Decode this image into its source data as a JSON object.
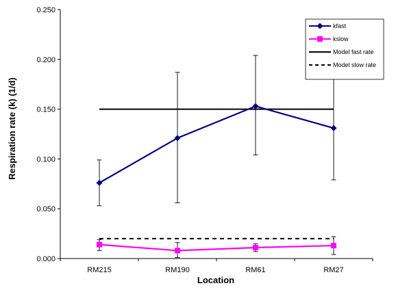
{
  "chart_data": {
    "type": "line",
    "xlabel": "Location",
    "ylabel": "Respiration rate (k) (1/d)",
    "categories": [
      "RM215",
      "RM190",
      "RM61",
      "RM27"
    ],
    "ylim": [
      0,
      0.25
    ],
    "yticks": [
      "0.000",
      "0.050",
      "0.100",
      "0.150",
      "0.200",
      "0.250"
    ],
    "grid": false,
    "legend_position": "top-right",
    "series": [
      {
        "name": "kfast",
        "color": "#000080",
        "marker": "diamond",
        "values": [
          0.076,
          0.121,
          0.153,
          0.131
        ],
        "err_low": [
          0.053,
          0.056,
          0.104,
          0.079
        ],
        "err_high": [
          0.099,
          0.187,
          0.204,
          0.183
        ]
      },
      {
        "name": "kslow",
        "color": "#FF00FF",
        "marker": "square",
        "values": [
          0.014,
          0.008,
          0.011,
          0.013
        ],
        "err_low": [
          0.008,
          0.001,
          0.007,
          0.004
        ],
        "err_high": [
          0.019,
          0.016,
          0.015,
          0.022
        ]
      },
      {
        "name": "Model fast rate",
        "color": "#000000",
        "style": "solid",
        "values": [
          0.15,
          0.15,
          0.15,
          0.15
        ]
      },
      {
        "name": "Model slow rate",
        "color": "#000000",
        "style": "dashed",
        "values": [
          0.02,
          0.02,
          0.02,
          0.02
        ]
      }
    ]
  }
}
